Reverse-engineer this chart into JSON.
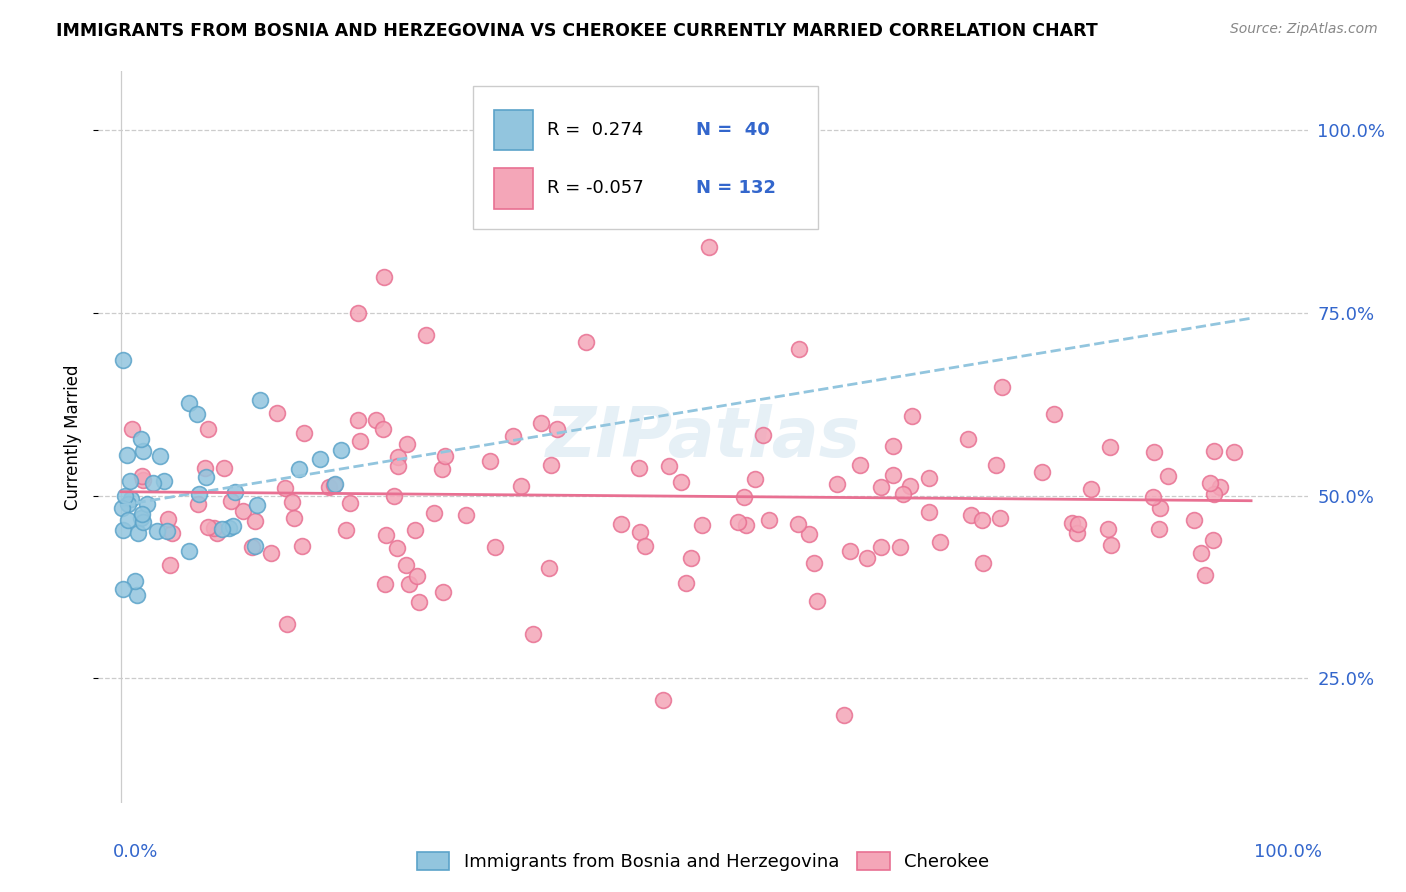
{
  "title": "IMMIGRANTS FROM BOSNIA AND HERZEGOVINA VS CHEROKEE CURRENTLY MARRIED CORRELATION CHART",
  "source": "Source: ZipAtlas.com",
  "ylabel": "Currently Married",
  "blue_scatter_color": "#92c5de",
  "blue_edge_color": "#5ba3c9",
  "pink_scatter_color": "#f4a6b8",
  "pink_edge_color": "#e87092",
  "trend_blue_color": "#92c5de",
  "trend_pink_color": "#e87092",
  "axis_label_color": "#3366cc",
  "watermark_color": "#b8d4e8",
  "grid_color": "#cccccc",
  "legend_border_color": "#cccccc",
  "y_tick_values": [
    0.25,
    0.5,
    0.75,
    1.0
  ],
  "y_tick_labels": [
    "25.0%",
    "50.0%",
    "75.0%",
    "100.0%"
  ],
  "xlim": [
    -0.02,
    1.05
  ],
  "ylim": [
    0.08,
    1.08
  ],
  "title_fontsize": 12.5,
  "source_fontsize": 10,
  "tick_label_fontsize": 13,
  "legend_fontsize": 13,
  "ylabel_fontsize": 12,
  "watermark_fontsize": 50,
  "legend_r1": "R =  0.274",
  "legend_n1": "N =  40",
  "legend_r2": "R = -0.057",
  "legend_n2": "N = 132",
  "blue_seed": 7,
  "pink_seed": 13,
  "n_blue": 40,
  "n_pink": 132
}
